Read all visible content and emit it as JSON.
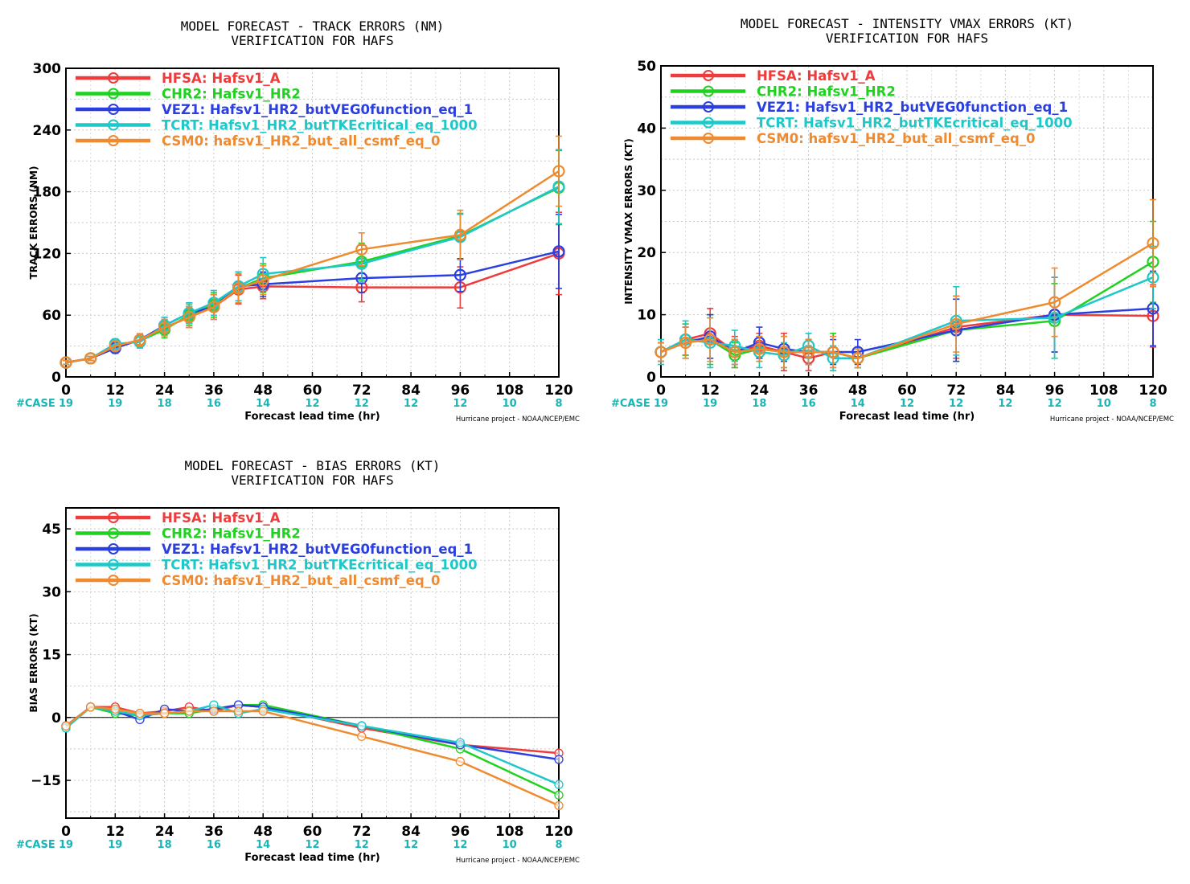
{
  "colors": {
    "HFSA": "#ef3b3b",
    "CHR2": "#1fd21f",
    "VEZ1": "#2b3fe0",
    "TCRT": "#1fc8c8",
    "CSM0": "#f08a2e",
    "case_label": "#19b5b5"
  },
  "footer_credit": "Hurricane project - NOAA/NCEP/EMC",
  "case_label": "#CASE",
  "chart_data": [
    {
      "id": "track",
      "type": "line",
      "title": "MODEL FORECAST - TRACK ERRORS (NM)",
      "subtitle": "VERIFICATION FOR HAFS",
      "xlabel": "Forecast lead time (hr)",
      "ylabel": "TRACK ERRORS (NM)",
      "xlim": [
        0,
        120
      ],
      "ylim": [
        0,
        300
      ],
      "xticks": [
        0,
        12,
        24,
        36,
        48,
        60,
        72,
        84,
        96,
        108,
        120
      ],
      "yticks": [
        0,
        60,
        120,
        180,
        240,
        300
      ],
      "grid": true,
      "legend": "top-left",
      "cases": [
        19,
        19,
        18,
        16,
        14,
        12,
        12,
        12,
        12,
        10,
        8
      ],
      "x": [
        0,
        6,
        12,
        18,
        24,
        30,
        36,
        42,
        48,
        72,
        96,
        120
      ],
      "error_bars": true,
      "series": [
        {
          "key": "HFSA",
          "name": "HFSA: Hafsv1_A",
          "values": [
            14,
            18,
            30,
            35,
            48,
            58,
            68,
            85,
            88,
            87,
            87,
            120
          ],
          "err": [
            2,
            2,
            5,
            6,
            8,
            10,
            12,
            14,
            12,
            14,
            20,
            40
          ]
        },
        {
          "key": "CHR2",
          "name": "CHR2: Hafsv1_HR2",
          "values": [
            14,
            18,
            30,
            35,
            46,
            60,
            70,
            86,
            96,
            112,
            137,
            184
          ],
          "err": [
            2,
            2,
            5,
            6,
            8,
            10,
            12,
            14,
            14,
            18,
            22,
            36
          ]
        },
        {
          "key": "VEZ1",
          "name": "VEZ1: Hafsv1_HR2_butVEG0function_eq_1",
          "values": [
            14,
            18,
            28,
            36,
            50,
            62,
            68,
            88,
            90,
            96,
            99,
            122
          ],
          "err": [
            2,
            2,
            5,
            6,
            8,
            10,
            12,
            14,
            12,
            14,
            16,
            36
          ]
        },
        {
          "key": "TCRT",
          "name": "TCRT: Hafsv1_HR2_butTKEcritical_eq_1000",
          "values": [
            14,
            18,
            32,
            34,
            50,
            62,
            72,
            88,
            100,
            110,
            136,
            185
          ],
          "err": [
            2,
            2,
            5,
            6,
            8,
            10,
            12,
            14,
            16,
            18,
            22,
            36
          ]
        },
        {
          "key": "CSM0",
          "name": "CSM0: hafsv1_HR2_but_all_csmf_eq_0",
          "values": [
            14,
            18,
            30,
            36,
            48,
            58,
            68,
            86,
            94,
            124,
            138,
            200
          ],
          "err": [
            2,
            2,
            5,
            6,
            8,
            10,
            12,
            14,
            14,
            16,
            24,
            34
          ]
        }
      ]
    },
    {
      "id": "intensity",
      "type": "line",
      "title": "MODEL FORECAST - INTENSITY VMAX ERRORS (KT)",
      "subtitle": "VERIFICATION FOR HAFS",
      "xlabel": "Forecast lead time (hr)",
      "ylabel": "INTENSITY VMAX ERRORS (KT)",
      "xlim": [
        0,
        120
      ],
      "ylim": [
        0,
        50
      ],
      "xticks": [
        0,
        12,
        24,
        36,
        48,
        60,
        72,
        84,
        96,
        108,
        120
      ],
      "yticks": [
        0,
        10,
        20,
        30,
        40,
        50
      ],
      "grid": true,
      "legend": "top-left",
      "cases": [
        19,
        19,
        18,
        16,
        14,
        12,
        12,
        12,
        12,
        10,
        8
      ],
      "x": [
        0,
        6,
        12,
        18,
        24,
        30,
        36,
        42,
        48,
        72,
        96,
        120
      ],
      "error_bars": true,
      "series": [
        {
          "key": "HFSA",
          "name": "HFSA: Hafsv1_A",
          "values": [
            4,
            6,
            7,
            4,
            5,
            4,
            3,
            4,
            3,
            8,
            10,
            9.8
          ],
          "err": [
            1.5,
            2.5,
            4,
            2.5,
            2,
            3,
            2,
            2.5,
            1.5,
            5,
            6,
            5
          ]
        },
        {
          "key": "CHR2",
          "name": "CHR2: Hafsv1_HR2",
          "values": [
            4,
            6,
            6,
            3.5,
            4.5,
            4,
            4,
            4,
            3,
            7.5,
            9,
            18.5
          ],
          "err": [
            1.5,
            2.5,
            4,
            2,
            2,
            2.5,
            2,
            3,
            1.5,
            5,
            6,
            6.5
          ]
        },
        {
          "key": "VEZ1",
          "name": "VEZ1: Hafsv1_HR2_butVEG0function_eq_1",
          "values": [
            4,
            5.5,
            6.5,
            4,
            5.5,
            4.5,
            4,
            4,
            4,
            7.5,
            10,
            11
          ],
          "err": [
            1.5,
            2.5,
            3.5,
            2,
            2.5,
            2,
            2,
            2,
            2,
            5,
            6,
            6
          ]
        },
        {
          "key": "TCRT",
          "name": "TCRT: Hafsv1_HR2_butTKEcritical_eq_1000",
          "values": [
            4,
            6,
            5.5,
            5,
            4,
            3.5,
            5,
            3,
            3,
            9,
            9.5,
            16
          ],
          "err": [
            2,
            3,
            4,
            2.5,
            2.5,
            2,
            2,
            2,
            1.5,
            5.5,
            6.5,
            5
          ]
        },
        {
          "key": "CSM0",
          "name": "CSM0: hafsv1_HR2_but_all_csmf_eq_0",
          "values": [
            4,
            5.5,
            6,
            4,
            4.5,
            4,
            4,
            4,
            3,
            8.5,
            12,
            21.5
          ],
          "err": [
            1.5,
            2.5,
            3.5,
            2,
            2,
            2.5,
            2,
            2.5,
            1.5,
            4.5,
            5.5,
            7
          ]
        }
      ]
    },
    {
      "id": "bias",
      "type": "line",
      "title": "MODEL FORECAST - BIAS ERRORS (KT)",
      "subtitle": "VERIFICATION FOR HAFS",
      "xlabel": "Forecast lead time (hr)",
      "ylabel": "BIAS ERRORS (KT)",
      "xlim": [
        0,
        120
      ],
      "ylim": [
        -24,
        50
      ],
      "xticks": [
        0,
        12,
        24,
        36,
        48,
        60,
        72,
        84,
        96,
        108,
        120
      ],
      "yticks": [
        -15,
        0,
        15,
        30,
        45
      ],
      "zero_line": true,
      "grid": true,
      "legend": "top-left",
      "cases": [
        19,
        19,
        18,
        16,
        14,
        12,
        12,
        12,
        12,
        10,
        8
      ],
      "x": [
        0,
        6,
        12,
        18,
        24,
        30,
        36,
        42,
        48,
        72,
        96,
        120
      ],
      "error_bars": false,
      "series": [
        {
          "key": "HFSA",
          "name": "HFSA: Hafsv1_A",
          "values": [
            -2,
            2.5,
            2.5,
            1,
            1.5,
            2.5,
            1.5,
            3,
            2.5,
            -2.5,
            -6.5,
            -8.5
          ]
        },
        {
          "key": "CHR2",
          "name": "CHR2: Hafsv1_HR2",
          "values": [
            -2.5,
            2.5,
            1,
            0.5,
            1,
            1,
            2,
            3,
            3,
            -2,
            -7.5,
            -18.5
          ]
        },
        {
          "key": "VEZ1",
          "name": "VEZ1: Hafsv1_HR2_butVEG0function_eq_1",
          "values": [
            -2,
            2.5,
            1.5,
            -0.5,
            2,
            1.5,
            2,
            3,
            2.5,
            -2,
            -6.5,
            -10
          ]
        },
        {
          "key": "TCRT",
          "name": "TCRT: Hafsv1_HR2_butTKEcritical_eq_1000",
          "values": [
            -2.5,
            2.5,
            1.5,
            0.5,
            1,
            1.5,
            3,
            1,
            2,
            -2,
            -6,
            -16
          ]
        },
        {
          "key": "CSM0",
          "name": "CSM0: hafsv1_HR2_but_all_csmf_eq_0",
          "values": [
            -2,
            2.5,
            2,
            1,
            1,
            1.5,
            1.5,
            1.5,
            1.5,
            -4.5,
            -10.5,
            -21
          ]
        }
      ]
    }
  ]
}
